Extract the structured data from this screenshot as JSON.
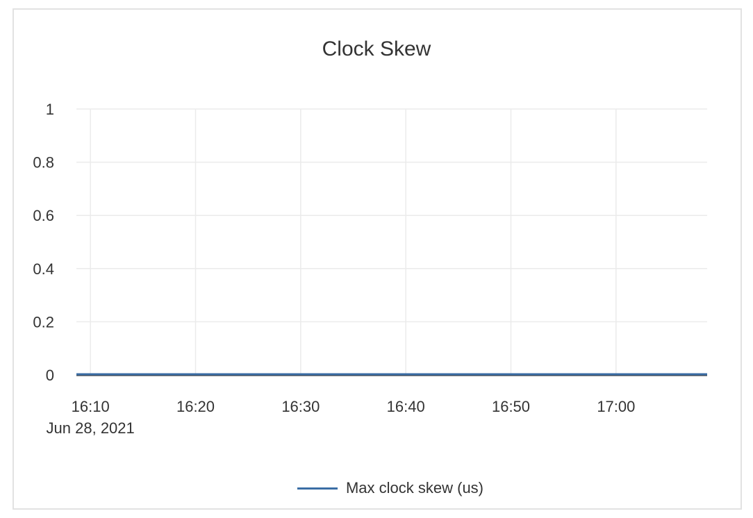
{
  "chart_data": {
    "type": "line",
    "title": "Clock Skew",
    "xlabel": "",
    "ylabel": "",
    "x_ticks": [
      "16:10",
      "16:20",
      "16:30",
      "16:40",
      "16:50",
      "17:00"
    ],
    "x_tick_date": "Jun 28, 2021",
    "xlim": [
      "16:08:40",
      "17:08:40"
    ],
    "y_ticks": [
      "0",
      "0.2",
      "0.4",
      "0.6",
      "0.8",
      "1"
    ],
    "ylim": [
      0,
      1
    ],
    "grid": true,
    "legend_position": "bottom",
    "series": [
      {
        "name": "Max clock skew (us)",
        "color": "#3b6ea5",
        "x": [
          "16:08:40",
          "17:08:40"
        ],
        "y": [
          0,
          0
        ]
      }
    ]
  }
}
